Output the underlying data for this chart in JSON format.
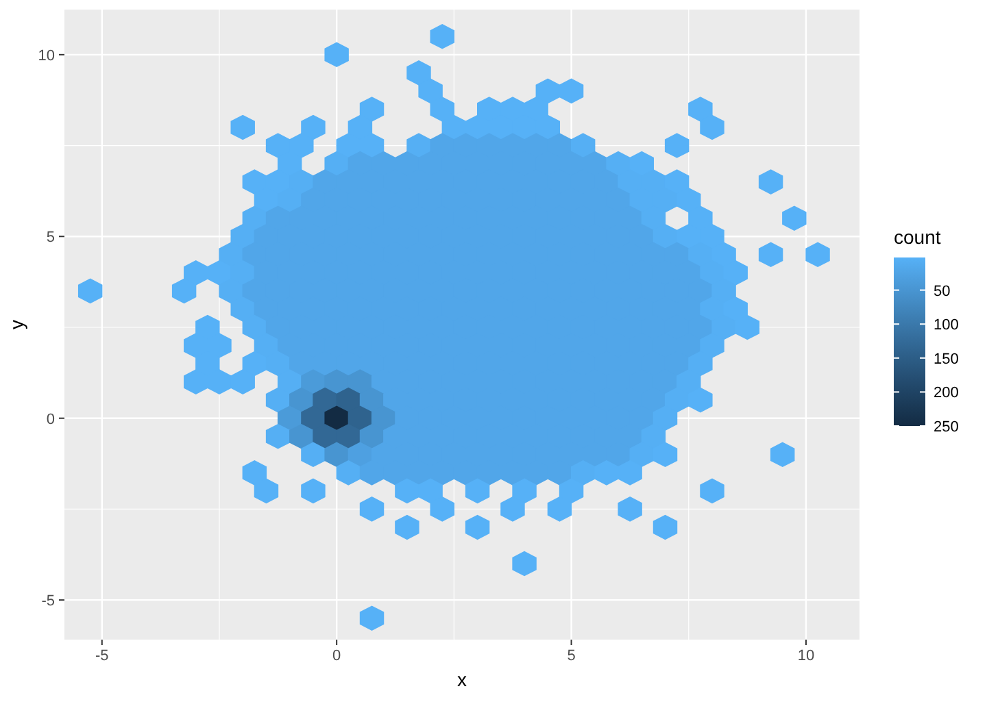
{
  "chart_data": {
    "type": "scatter",
    "xlabel": "x",
    "ylabel": "y",
    "clabel": "count",
    "xlim": [
      -5.8,
      11.14
    ],
    "ylim": [
      -6.09,
      11.24
    ],
    "xticks": [
      -5,
      0,
      5,
      10
    ],
    "yticks": [
      -5,
      0,
      5,
      10
    ],
    "grid": true,
    "clim": [
      2,
      250
    ],
    "cticks": [
      50,
      100,
      150,
      200,
      250
    ],
    "x": [
      2.25,
      0,
      1.75,
      2,
      4.5,
      5,
      0.75,
      2.25,
      3.25,
      3.75,
      4.25,
      7.75,
      -2,
      -0.5,
      0.5,
      2.5,
      3,
      3.5,
      4,
      4.5,
      8,
      -1.25,
      -0.75,
      0.25,
      0.75,
      1.75,
      2.25,
      2.75,
      3.25,
      3.75,
      4.25,
      4.75,
      5.25,
      7.25,
      -1,
      0,
      0.5,
      1,
      1.5,
      2,
      2.5,
      3,
      3.5,
      4,
      4.5,
      5,
      5.5,
      6,
      6.5,
      -1.75,
      -1.25,
      -0.75,
      -0.25,
      0.25,
      0.75,
      1.25,
      1.75,
      2.25,
      2.75,
      3.25,
      3.75,
      4.25,
      4.75,
      5.25,
      5.75,
      6.25,
      6.75,
      7.25,
      9.25,
      -1.5,
      -1,
      -0.5,
      0,
      0.5,
      1,
      1.5,
      2,
      2.5,
      3,
      3.5,
      4,
      4.5,
      5,
      5.5,
      6,
      6.5,
      7,
      7.5,
      -1.75,
      -1.25,
      -0.75,
      -0.25,
      0.25,
      0.75,
      1.25,
      1.75,
      2.25,
      2.75,
      3.25,
      3.75,
      4.25,
      4.75,
      5.25,
      5.75,
      6.25,
      6.75,
      7.75,
      9.75,
      -2,
      -1.5,
      -1,
      -0.5,
      0,
      0.5,
      1,
      1.5,
      2,
      2.5,
      3,
      3.5,
      4,
      4.5,
      5,
      5.5,
      6,
      6.5,
      7,
      7.5,
      8,
      -2.25,
      -1.75,
      -1.25,
      -0.75,
      -0.25,
      0.25,
      0.75,
      1.25,
      1.75,
      2.25,
      2.75,
      3.25,
      3.75,
      4.25,
      4.75,
      5.25,
      5.75,
      6.25,
      6.75,
      7.25,
      7.75,
      8.25,
      9.25,
      10.25,
      -3,
      -2.5,
      -2,
      -1.5,
      -1,
      -0.5,
      0,
      0.5,
      1,
      1.5,
      2,
      2.5,
      3,
      3.5,
      4,
      4.5,
      5,
      5.5,
      6,
      6.5,
      7,
      7.5,
      8,
      8.5,
      -5.25,
      -3.25,
      -2.25,
      -1.75,
      -1.25,
      -0.75,
      -0.25,
      0.25,
      0.75,
      1.25,
      1.75,
      2.25,
      2.75,
      3.25,
      3.75,
      4.25,
      4.75,
      5.25,
      5.75,
      6.25,
      6.75,
      7.25,
      7.75,
      8.25,
      -2,
      -1.5,
      -1,
      -0.5,
      0,
      0.5,
      1,
      1.5,
      2,
      2.5,
      3,
      3.5,
      4,
      4.5,
      5,
      5.5,
      6,
      6.5,
      7,
      7.5,
      8,
      8.5,
      -2.75,
      -1.75,
      -1.25,
      -0.75,
      -0.25,
      0.25,
      0.75,
      1.25,
      1.75,
      2.25,
      2.75,
      3.25,
      3.75,
      4.25,
      4.75,
      5.25,
      5.75,
      6.25,
      6.75,
      7.25,
      7.75,
      8.25,
      8.75,
      -3,
      -2.5,
      -1.5,
      -1,
      -0.5,
      0,
      0.5,
      1,
      1.5,
      2,
      2.5,
      3,
      3.5,
      4,
      4.5,
      5,
      5.5,
      6,
      6.5,
      7,
      7.5,
      8,
      -2.75,
      -1.75,
      -1.25,
      -0.75,
      -0.25,
      0.25,
      0.75,
      1.25,
      1.75,
      2.25,
      2.75,
      3.25,
      3.75,
      4.25,
      4.75,
      5.25,
      5.75,
      6.25,
      6.75,
      7.25,
      7.75,
      -3,
      -2.5,
      -2,
      -1,
      -0.5,
      0,
      0.5,
      1,
      1.5,
      2,
      2.5,
      3,
      3.5,
      4,
      4.5,
      5,
      5.5,
      6,
      6.5,
      7,
      7.5,
      -1.25,
      -0.75,
      -0.25,
      0.25,
      0.75,
      1.25,
      1.75,
      2.25,
      2.75,
      3.25,
      3.75,
      4.25,
      4.75,
      5.25,
      5.75,
      6.25,
      6.75,
      7.25,
      7.75,
      -1,
      -0.5,
      0,
      0.5,
      1,
      1.5,
      2,
      2.5,
      3,
      3.5,
      4,
      4.5,
      5,
      5.5,
      6,
      6.5,
      7,
      -1.25,
      -0.75,
      -0.25,
      0.25,
      0.75,
      1.25,
      1.75,
      2.25,
      2.75,
      3.25,
      3.75,
      4.25,
      4.75,
      5.25,
      5.75,
      6.25,
      6.75,
      -0.5,
      0,
      0.5,
      1,
      1.5,
      2,
      2.5,
      3,
      3.5,
      4,
      4.5,
      5,
      5.5,
      6,
      6.5,
      7,
      9.5,
      -1.75,
      0.25,
      0.75,
      1.25,
      1.75,
      2.25,
      2.75,
      3.25,
      3.75,
      4.25,
      4.75,
      5.25,
      5.75,
      6.25,
      -1.5,
      -0.5,
      1.5,
      2,
      3,
      4,
      5,
      8,
      0.75,
      2.25,
      3.75,
      4.75,
      6.25,
      1.5,
      3,
      7,
      4,
      0.75
    ],
    "values": [
      10.5,
      10,
      9.5,
      9,
      9,
      9,
      8.5,
      8.5,
      8.5,
      8.5,
      8.5,
      8.5,
      8,
      8,
      8,
      8,
      8,
      8,
      8,
      8,
      8,
      7.5,
      7.5,
      7.5,
      7.5,
      7.5,
      7.5,
      7.5,
      7.5,
      7.5,
      7.5,
      7.5,
      7.5,
      7.5,
      7,
      7,
      7,
      7,
      7,
      7,
      7,
      7,
      7,
      7,
      7,
      7,
      7,
      7,
      7,
      6.5,
      6.5,
      6.5,
      6.5,
      6.5,
      6.5,
      6.5,
      6.5,
      6.5,
      6.5,
      6.5,
      6.5,
      6.5,
      6.5,
      6.5,
      6.5,
      6.5,
      6.5,
      6.5,
      6.5,
      6,
      6,
      6,
      6,
      6,
      6,
      6,
      6,
      6,
      6,
      6,
      6,
      6,
      6,
      6,
      6,
      6,
      6,
      6,
      5.5,
      5.5,
      5.5,
      5.5,
      5.5,
      5.5,
      5.5,
      5.5,
      5.5,
      5.5,
      5.5,
      5.5,
      5.5,
      5.5,
      5.5,
      5.5,
      5.5,
      5.5,
      5.5,
      5.5,
      5,
      5,
      5,
      5,
      5,
      5,
      5,
      5,
      5,
      5,
      5,
      5,
      5,
      5,
      5,
      5,
      5,
      5,
      5,
      5,
      5,
      4.5,
      4.5,
      4.5,
      4.5,
      4.5,
      4.5,
      4.5,
      4.5,
      4.5,
      4.5,
      4.5,
      4.5,
      4.5,
      4.5,
      4.5,
      4.5,
      4.5,
      4.5,
      4.5,
      4.5,
      4.5,
      4.5,
      4.5,
      4.5,
      4,
      4,
      4,
      4,
      4,
      4,
      4,
      4,
      4,
      4,
      4,
      4,
      4,
      4,
      4,
      4,
      4,
      4,
      4,
      4,
      4,
      4,
      4,
      4,
      3.5,
      3.5,
      3.5,
      3.5,
      3.5,
      3.5,
      3.5,
      3.5,
      3.5,
      3.5,
      3.5,
      3.5,
      3.5,
      3.5,
      3.5,
      3.5,
      3.5,
      3.5,
      3.5,
      3.5,
      3.5,
      3.5,
      3.5,
      3.5,
      3,
      3,
      3,
      3,
      3,
      3,
      3,
      3,
      3,
      3,
      3,
      3,
      3,
      3,
      3,
      3,
      3,
      3,
      3,
      3,
      3,
      3,
      2.5,
      2.5,
      2.5,
      2.5,
      2.5,
      2.5,
      2.5,
      2.5,
      2.5,
      2.5,
      2.5,
      2.5,
      2.5,
      2.5,
      2.5,
      2.5,
      2.5,
      2.5,
      2.5,
      2.5,
      2.5,
      2.5,
      2.5,
      2,
      2,
      2,
      2,
      2,
      2,
      2,
      2,
      2,
      2,
      2,
      2,
      2,
      2,
      2,
      2,
      2,
      2,
      2,
      2,
      2,
      2,
      1.5,
      1.5,
      1.5,
      1.5,
      1.5,
      1.5,
      1.5,
      1.5,
      1.5,
      1.5,
      1.5,
      1.5,
      1.5,
      1.5,
      1.5,
      1.5,
      1.5,
      1.5,
      1.5,
      1.5,
      1.5,
      1,
      1,
      1,
      1,
      1,
      1,
      1,
      1,
      1,
      1,
      1,
      1,
      1,
      1,
      1,
      1,
      1,
      1,
      1,
      1,
      1,
      0.5,
      0.5,
      0.5,
      0.5,
      0.5,
      0.5,
      0.5,
      0.5,
      0.5,
      0.5,
      0.5,
      0.5,
      0.5,
      0.5,
      0.5,
      0.5,
      0.5,
      0.5,
      0.5,
      0,
      0,
      0,
      0,
      0,
      0,
      0,
      0,
      0,
      0,
      0,
      0,
      0,
      0,
      0,
      0,
      0,
      -0.5,
      -0.5,
      -0.5,
      -0.5,
      -0.5,
      -0.5,
      -0.5,
      -0.5,
      -0.5,
      -0.5,
      -0.5,
      -0.5,
      -0.5,
      -0.5,
      -0.5,
      -0.5,
      -0.5,
      -1,
      -1,
      -1,
      -1,
      -1,
      -1,
      -1,
      -1,
      -1,
      -1,
      -1,
      -1,
      -1,
      -1,
      -1,
      -1,
      -1,
      -1.5,
      -1.5,
      -1.5,
      -1.5,
      -1.5,
      -1.5,
      -1.5,
      -1.5,
      -1.5,
      -1.5,
      -1.5,
      -1.5,
      -1.5,
      -1.5,
      -2,
      -2,
      -2,
      -2,
      -2,
      -2,
      -2,
      -2,
      -2.5,
      -2.5,
      -2.5,
      -2.5,
      -2.5,
      -3,
      -3,
      -3,
      -4,
      -5.5
    ],
    "cvalues": [
      2,
      2,
      2,
      2,
      2,
      2,
      2,
      2,
      2,
      2,
      2,
      2,
      2,
      2,
      2,
      2,
      2,
      2,
      2,
      2,
      2,
      2,
      2,
      2,
      2,
      6,
      20,
      20,
      20,
      20,
      20,
      20,
      6,
      2,
      2,
      6,
      20,
      20,
      20,
      20,
      20,
      20,
      20,
      20,
      20,
      20,
      20,
      6,
      2,
      2,
      2,
      6,
      20,
      20,
      20,
      20,
      20,
      20,
      20,
      20,
      20,
      20,
      20,
      20,
      20,
      6,
      6,
      2,
      2,
      2,
      6,
      20,
      20,
      20,
      20,
      20,
      20,
      20,
      20,
      20,
      20,
      20,
      20,
      20,
      20,
      6,
      6,
      2,
      6,
      20,
      20,
      20,
      20,
      20,
      20,
      20,
      20,
      20,
      20,
      20,
      20,
      20,
      20,
      20,
      20,
      6,
      2,
      2,
      6,
      20,
      20,
      20,
      20,
      20,
      20,
      20,
      20,
      20,
      20,
      20,
      20,
      20,
      20,
      20,
      20,
      20,
      6,
      2,
      2,
      6,
      20,
      20,
      20,
      20,
      20,
      20,
      20,
      20,
      20,
      20,
      20,
      20,
      20,
      20,
      20,
      20,
      20,
      20,
      20,
      6,
      2,
      2,
      2,
      2,
      2,
      6,
      20,
      20,
      20,
      20,
      20,
      20,
      20,
      20,
      20,
      20,
      20,
      20,
      20,
      20,
      20,
      20,
      20,
      20,
      20,
      6,
      2,
      2,
      2,
      6,
      20,
      20,
      20,
      20,
      20,
      20,
      20,
      20,
      20,
      20,
      20,
      20,
      20,
      20,
      20,
      20,
      20,
      20,
      20,
      20,
      6,
      6,
      20,
      20,
      20,
      20,
      20,
      20,
      20,
      20,
      20,
      20,
      20,
      20,
      20,
      20,
      20,
      20,
      20,
      20,
      20,
      6,
      2,
      2,
      6,
      20,
      20,
      20,
      20,
      20,
      20,
      20,
      20,
      20,
      20,
      20,
      20,
      20,
      20,
      20,
      20,
      20,
      20,
      20,
      6,
      2,
      2,
      2,
      6,
      20,
      20,
      20,
      20,
      20,
      20,
      20,
      20,
      20,
      20,
      20,
      20,
      20,
      20,
      20,
      20,
      20,
      20,
      6,
      2,
      2,
      6,
      20,
      20,
      20,
      20,
      20,
      20,
      20,
      20,
      20,
      20,
      20,
      20,
      20,
      20,
      20,
      20,
      20,
      6,
      2,
      2,
      2,
      6,
      40,
      50,
      50,
      20,
      20,
      20,
      20,
      20,
      20,
      20,
      20,
      20,
      20,
      20,
      20,
      20,
      6,
      6,
      50,
      130,
      140,
      50,
      20,
      20,
      20,
      20,
      20,
      20,
      20,
      20,
      20,
      20,
      20,
      20,
      6,
      2,
      40,
      130,
      250,
      140,
      50,
      20,
      20,
      20,
      20,
      20,
      20,
      20,
      20,
      20,
      20,
      20,
      6,
      6,
      50,
      130,
      130,
      50,
      20,
      20,
      20,
      20,
      20,
      20,
      20,
      20,
      20,
      20,
      20,
      6,
      6,
      50,
      30,
      20,
      20,
      20,
      20,
      20,
      20,
      20,
      20,
      20,
      20,
      20,
      6,
      2,
      2,
      2,
      6,
      20,
      20,
      20,
      20,
      20,
      20,
      20,
      20,
      20,
      6,
      2,
      2,
      2,
      2,
      2,
      2,
      2,
      2,
      2,
      2,
      2,
      2,
      2,
      2,
      2,
      2,
      2,
      2,
      2,
      2
    ]
  }
}
